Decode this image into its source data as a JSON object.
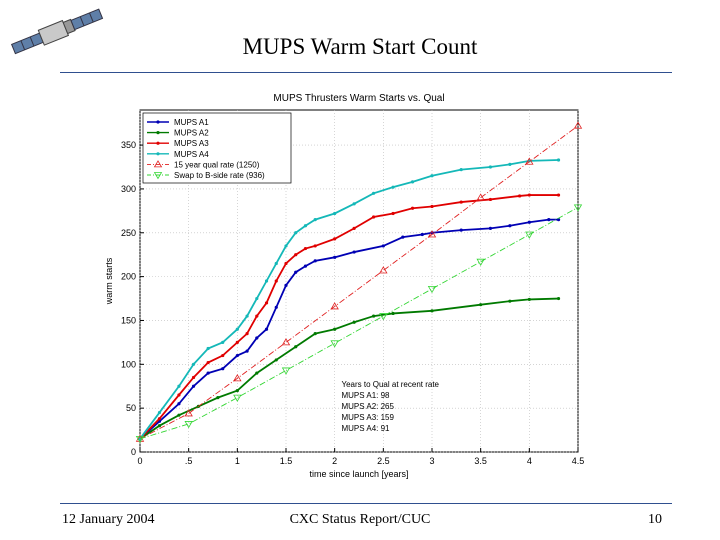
{
  "slide": {
    "title": "MUPS Warm Start Count",
    "footer_left": "12 January 2004",
    "footer_center": "CXC Status Report/CUC",
    "page_number": "10"
  },
  "logo": {
    "icon": "satellite-icon"
  },
  "colors": {
    "rule": "#2f4f8f",
    "a1": "#0000b4",
    "a2": "#007a00",
    "a3": "#e00000",
    "a4": "#14b8b8",
    "qual": "#e02020",
    "swap": "#33d633"
  },
  "chart_data": {
    "type": "line",
    "title": "MUPS Thrusters Warm Starts vs. Qual",
    "xlabel": "time since launch [years]",
    "ylabel": "warm starts",
    "xlim": [
      0,
      4.5
    ],
    "ylim": [
      0,
      390
    ],
    "xticks": [
      0,
      0.5,
      1,
      1.5,
      2,
      2.5,
      3,
      3.5,
      4,
      4.5
    ],
    "xtick_labels": [
      "0",
      ".5",
      "1",
      "1.5",
      "2",
      "2.5",
      "3",
      "3.5",
      "4",
      "4.5"
    ],
    "yticks": [
      0,
      50,
      100,
      150,
      200,
      250,
      300,
      350
    ],
    "ytick_labels": [
      "0",
      "50",
      "100",
      "150",
      "200",
      "250",
      "300",
      "350"
    ],
    "grid": true,
    "legend_position": "top-left",
    "series": [
      {
        "name": "MUPS A1",
        "key": "a1",
        "style": "solid",
        "marker": "dot",
        "x": [
          0,
          0.2,
          0.4,
          0.55,
          0.7,
          0.85,
          1.0,
          1.1,
          1.2,
          1.3,
          1.4,
          1.5,
          1.6,
          1.7,
          1.8,
          2.0,
          2.2,
          2.5,
          2.7,
          2.9,
          3.0,
          3.3,
          3.6,
          3.8,
          4.0,
          4.2,
          4.3
        ],
        "y": [
          15,
          35,
          55,
          75,
          90,
          95,
          110,
          115,
          130,
          140,
          165,
          190,
          205,
          212,
          218,
          222,
          228,
          235,
          245,
          248,
          250,
          253,
          255,
          258,
          262,
          265,
          265
        ]
      },
      {
        "name": "MUPS A2",
        "key": "a2",
        "style": "solid",
        "marker": "dot",
        "x": [
          0,
          0.2,
          0.4,
          0.6,
          0.8,
          1.0,
          1.2,
          1.4,
          1.6,
          1.8,
          2.0,
          2.2,
          2.4,
          2.6,
          3.0,
          3.5,
          3.8,
          4.0,
          4.3
        ],
        "y": [
          15,
          30,
          42,
          52,
          62,
          70,
          90,
          105,
          120,
          135,
          140,
          148,
          155,
          158,
          161,
          168,
          172,
          174,
          175
        ]
      },
      {
        "name": "MUPS A3",
        "key": "a3",
        "style": "solid",
        "marker": "dot",
        "x": [
          0,
          0.2,
          0.4,
          0.55,
          0.7,
          0.85,
          1.0,
          1.1,
          1.2,
          1.3,
          1.4,
          1.5,
          1.6,
          1.7,
          1.8,
          2.0,
          2.2,
          2.4,
          2.6,
          2.8,
          3.0,
          3.3,
          3.6,
          3.9,
          4.0,
          4.3
        ],
        "y": [
          15,
          38,
          65,
          85,
          102,
          110,
          125,
          135,
          155,
          170,
          195,
          215,
          225,
          232,
          235,
          243,
          255,
          268,
          272,
          278,
          280,
          285,
          288,
          292,
          293,
          293
        ]
      },
      {
        "name": "MUPS A4",
        "key": "a4",
        "style": "solid",
        "marker": "dot",
        "x": [
          0,
          0.2,
          0.4,
          0.55,
          0.7,
          0.85,
          1.0,
          1.1,
          1.2,
          1.3,
          1.4,
          1.5,
          1.6,
          1.7,
          1.8,
          2.0,
          2.2,
          2.4,
          2.6,
          2.8,
          3.0,
          3.3,
          3.6,
          3.8,
          4.0,
          4.3
        ],
        "y": [
          15,
          45,
          75,
          100,
          118,
          125,
          140,
          155,
          175,
          195,
          215,
          235,
          250,
          258,
          265,
          272,
          283,
          295,
          302,
          308,
          315,
          322,
          325,
          328,
          332,
          333
        ]
      },
      {
        "name": "15 year qual rate (1250)",
        "key": "qual",
        "style": "dashdot",
        "marker": "triangle-up",
        "x": [
          0,
          0.5,
          1.0,
          1.5,
          2.0,
          2.5,
          3.0,
          3.5,
          4.0,
          4.5
        ],
        "y": [
          15,
          44,
          84,
          125,
          166,
          207,
          248,
          290,
          331,
          372
        ]
      },
      {
        "name": "Swap to B-side rate (936)",
        "key": "swap",
        "style": "dashdot",
        "marker": "triangle-down",
        "x": [
          0,
          0.5,
          1.0,
          1.5,
          2.0,
          2.5,
          3.0,
          3.5,
          4.0,
          4.5
        ],
        "y": [
          15,
          32,
          62,
          93,
          124,
          155,
          186,
          217,
          248,
          279
        ]
      }
    ],
    "annotation": {
      "heading": "Years to Qual at recent rate",
      "lines": [
        "MUPS A1:   98",
        "MUPS A2:   265",
        "MUPS A3:   159",
        "MUPS A4:   91"
      ]
    }
  }
}
